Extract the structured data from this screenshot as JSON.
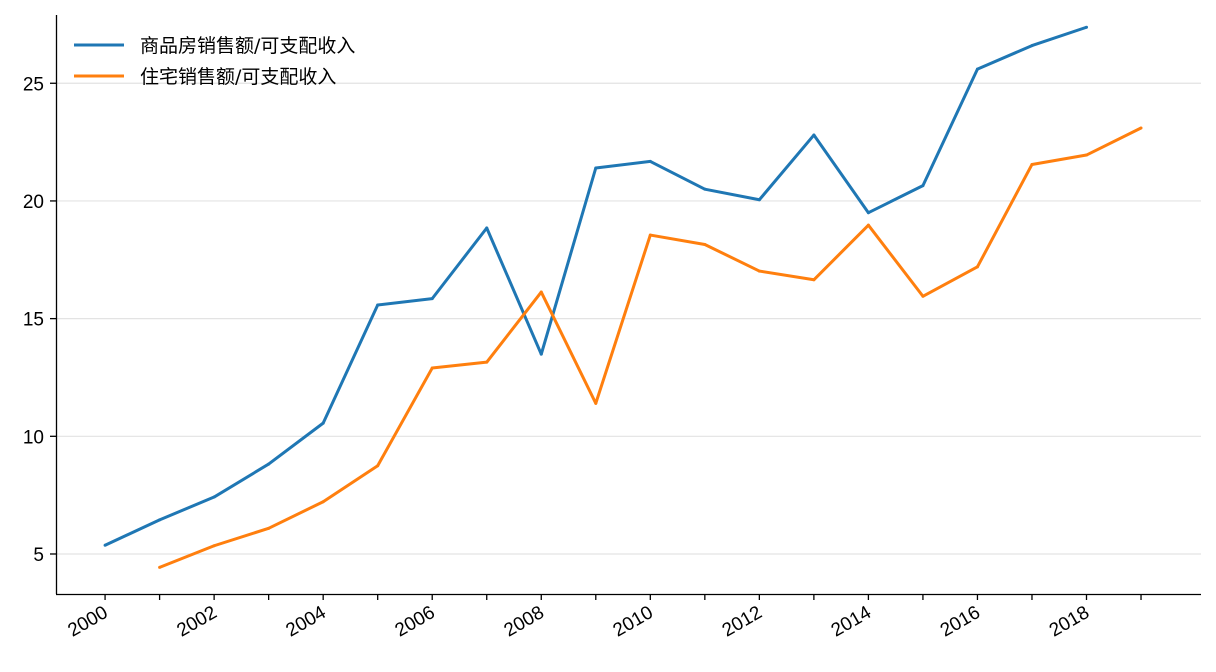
{
  "chart_data": {
    "type": "line",
    "title": "",
    "xlabel": "",
    "ylabel": "",
    "xlim": [
      1999.1,
      2020.1
    ],
    "ylim": [
      3.3,
      27.9
    ],
    "xticks": [
      "2000",
      "2002",
      "2004",
      "2006",
      "2008",
      "2010",
      "2012",
      "2014",
      "2016",
      "2018"
    ],
    "yticks": [
      "5",
      "10",
      "15",
      "20",
      "25"
    ],
    "grid": "horizontal",
    "legend_position": "top-left",
    "series": [
      {
        "name": "商品房销售额/可支配收入",
        "color": "#1f77b4",
        "x": [
          2000,
          2001,
          2002,
          2003,
          2004,
          2005,
          2006,
          2007,
          2008,
          2009,
          2010,
          2011,
          2012,
          2013,
          2014,
          2015,
          2016,
          2017,
          2018
        ],
        "values": [
          5.37,
          6.45,
          7.42,
          8.82,
          10.56,
          15.58,
          15.85,
          18.85,
          13.49,
          21.4,
          21.68,
          20.5,
          20.05,
          22.8,
          19.5,
          20.65,
          25.6,
          26.6,
          27.38
        ]
      },
      {
        "name": "住宅销售额/可支配收入",
        "color": "#ff7f0e",
        "x": [
          2001,
          2002,
          2003,
          2004,
          2005,
          2006,
          2007,
          2008,
          2009,
          2010,
          2011,
          2012,
          2013,
          2014,
          2015,
          2016,
          2017,
          2018,
          2019
        ],
        "values": [
          4.43,
          5.35,
          6.09,
          7.22,
          8.75,
          12.9,
          13.15,
          16.13,
          11.4,
          18.55,
          18.15,
          17.02,
          16.65,
          18.97,
          15.95,
          17.2,
          21.55,
          21.95,
          23.1
        ]
      }
    ]
  }
}
